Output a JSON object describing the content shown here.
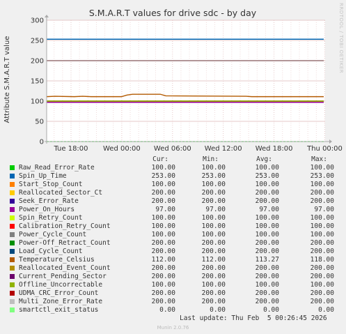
{
  "chart_data": {
    "type": "line",
    "title": "S.M.A.R.T values for drive sdc - by day",
    "ylabel": "Attribute S.M.A.R.T value",
    "xlabel": "",
    "ylim": [
      0,
      300
    ],
    "yticks": [
      0,
      50,
      100,
      150,
      200,
      250,
      300
    ],
    "xtick_labels": [
      "Tue 18:00",
      "Wed 00:00",
      "Wed 06:00",
      "Wed 12:00",
      "Wed 18:00",
      "Thu 00:00"
    ],
    "grid": true,
    "columns": [
      "Cur:",
      "Min:",
      "Avg:",
      "Max:"
    ],
    "series": [
      {
        "name": "Raw_Read_Error_Rate",
        "color": "#00cc00",
        "cur": "100.00",
        "min": "100.00",
        "avg": "100.00",
        "max": "100.00",
        "value": 100
      },
      {
        "name": "Spin_Up_Time",
        "color": "#0066b3",
        "cur": "253.00",
        "min": "253.00",
        "avg": "253.00",
        "max": "253.00",
        "value": 253
      },
      {
        "name": "Start_Stop_Count",
        "color": "#ff8000",
        "cur": "100.00",
        "min": "100.00",
        "avg": "100.00",
        "max": "100.00",
        "value": 100
      },
      {
        "name": "Reallocated_Sector_Ct",
        "color": "#ffcc00",
        "cur": "200.00",
        "min": "200.00",
        "avg": "200.00",
        "max": "200.00",
        "value": 200
      },
      {
        "name": "Seek_Error_Rate",
        "color": "#330099",
        "cur": "200.00",
        "min": "200.00",
        "avg": "200.00",
        "max": "200.00",
        "value": 200
      },
      {
        "name": "Power_On_Hours",
        "color": "#990099",
        "cur": "97.00",
        "min": "97.00",
        "avg": "97.00",
        "max": "97.00",
        "value": 97
      },
      {
        "name": "Spin_Retry_Count",
        "color": "#ccff00",
        "cur": "100.00",
        "min": "100.00",
        "avg": "100.00",
        "max": "100.00",
        "value": 100
      },
      {
        "name": "Calibration_Retry_Count",
        "color": "#ff0000",
        "cur": "100.00",
        "min": "100.00",
        "avg": "100.00",
        "max": "100.00",
        "value": 100
      },
      {
        "name": "Power_Cycle_Count",
        "color": "#808080",
        "cur": "100.00",
        "min": "100.00",
        "avg": "100.00",
        "max": "100.00",
        "value": 100
      },
      {
        "name": "Power-Off_Retract_Count",
        "color": "#008f00",
        "cur": "200.00",
        "min": "200.00",
        "avg": "200.00",
        "max": "200.00",
        "value": 200
      },
      {
        "name": "Load_Cycle_Count",
        "color": "#00487d",
        "cur": "200.00",
        "min": "200.00",
        "avg": "200.00",
        "max": "200.00",
        "value": 200
      },
      {
        "name": "Temperature_Celsius",
        "color": "#b35a00",
        "cur": "112.00",
        "min": "112.00",
        "avg": "113.27",
        "max": "118.00",
        "value": 112
      },
      {
        "name": "Reallocated_Event_Count",
        "color": "#b38f00",
        "cur": "200.00",
        "min": "200.00",
        "avg": "200.00",
        "max": "200.00",
        "value": 200
      },
      {
        "name": "Current_Pending_Sector",
        "color": "#6b006b",
        "cur": "200.00",
        "min": "200.00",
        "avg": "200.00",
        "max": "200.00",
        "value": 200
      },
      {
        "name": "Offline_Uncorrectable",
        "color": "#8fb300",
        "cur": "100.00",
        "min": "100.00",
        "avg": "100.00",
        "max": "100.00",
        "value": 100
      },
      {
        "name": "UDMA_CRC_Error_Count",
        "color": "#b30000",
        "cur": "200.00",
        "min": "200.00",
        "avg": "200.00",
        "max": "200.00",
        "value": 200
      },
      {
        "name": "Multi_Zone_Error_Rate",
        "color": "#bebebe",
        "cur": "200.00",
        "min": "200.00",
        "avg": "200.00",
        "max": "200.00",
        "value": 200
      },
      {
        "name": "smartctl_exit_status",
        "color": "#80ff80",
        "cur": "0.00",
        "min": "0.00",
        "avg": "0.00",
        "max": "0.00",
        "value": 0
      }
    ],
    "temperature_trace": [
      [
        0,
        111
      ],
      [
        0.03,
        112
      ],
      [
        0.1,
        111
      ],
      [
        0.13,
        112
      ],
      [
        0.16,
        111
      ],
      [
        0.27,
        111
      ],
      [
        0.29,
        115
      ],
      [
        0.31,
        117
      ],
      [
        0.41,
        117
      ],
      [
        0.43,
        113
      ],
      [
        0.72,
        112
      ],
      [
        0.74,
        111
      ],
      [
        1.0,
        111
      ]
    ]
  },
  "last_update": "Last update: Thu Feb  5 00:26:45 2026",
  "footer": "Munin 2.0.76",
  "side_credit": "RRDTOOL / TOBI OETIKER"
}
